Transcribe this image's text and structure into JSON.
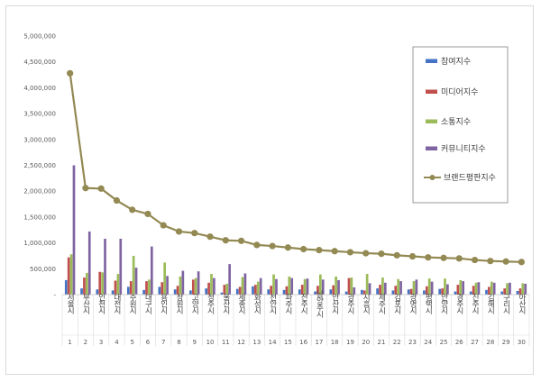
{
  "chart_data": {
    "type": "bar",
    "title": "",
    "xlabel": "",
    "ylabel": "",
    "ylim": [
      0,
      5000000
    ],
    "yticks": [
      "5,000,000",
      "4,500,000",
      "4,000,000",
      "3,500,000",
      "3,000,000",
      "2,500,000",
      "2,000,000",
      "1,500,000",
      "1,000,000",
      "500,000",
      "-"
    ],
    "legend_position": "right",
    "grid": false,
    "categories": [
      "서울시",
      "부산시",
      "인천시",
      "대전시",
      "수원시",
      "대구시",
      "용인시",
      "창원시",
      "고양시",
      "청주시",
      "울산시",
      "세종시",
      "화성시",
      "천안시",
      "파주시",
      "전주시",
      "남양주시",
      "안산시",
      "광주시",
      "시흥시",
      "제주시",
      "김포시",
      "광명시",
      "평택시",
      "안양시",
      "경주시",
      "진주시",
      "김해시",
      "구리시",
      "아산시"
    ],
    "ranks": [
      "1",
      "2",
      "3",
      "4",
      "5",
      "6",
      "7",
      "8",
      "9",
      "10",
      "11",
      "12",
      "13",
      "14",
      "15",
      "16",
      "17",
      "18",
      "19",
      "20",
      "21",
      "22",
      "23",
      "24",
      "25",
      "26",
      "27",
      "28",
      "29",
      "30"
    ],
    "series": [
      {
        "name": "참여지수",
        "kind": "bar",
        "color": "#4472c4",
        "values": [
          280000,
          120000,
          100000,
          80000,
          150000,
          90000,
          150000,
          100000,
          80000,
          120000,
          40000,
          110000,
          160000,
          100000,
          90000,
          100000,
          60000,
          100000,
          60000,
          90000,
          120000,
          80000,
          100000,
          80000,
          110000,
          60000,
          60000,
          90000,
          60000,
          70000
        ]
      },
      {
        "name": "미디어지수",
        "kind": "bar",
        "color": "#c0504d",
        "values": [
          720000,
          330000,
          440000,
          270000,
          260000,
          260000,
          240000,
          170000,
          290000,
          230000,
          190000,
          150000,
          190000,
          170000,
          160000,
          190000,
          170000,
          180000,
          320000,
          80000,
          190000,
          170000,
          110000,
          160000,
          120000,
          190000,
          170000,
          150000,
          120000,
          120000
        ]
      },
      {
        "name": "소통지수",
        "kind": "bar",
        "color": "#9bbb59",
        "values": [
          780000,
          420000,
          430000,
          400000,
          750000,
          290000,
          620000,
          350000,
          320000,
          400000,
          210000,
          340000,
          250000,
          390000,
          350000,
          300000,
          390000,
          350000,
          330000,
          400000,
          330000,
          300000,
          260000,
          310000,
          310000,
          280000,
          230000,
          250000,
          220000,
          220000
        ]
      },
      {
        "name": "커뮤니티지수",
        "kind": "bar",
        "color": "#8064a2",
        "values": [
          2500000,
          1220000,
          1080000,
          1080000,
          520000,
          930000,
          360000,
          460000,
          450000,
          320000,
          590000,
          410000,
          320000,
          300000,
          320000,
          310000,
          290000,
          280000,
          140000,
          220000,
          230000,
          260000,
          290000,
          250000,
          200000,
          260000,
          240000,
          230000,
          230000,
          210000
        ]
      },
      {
        "name": "브랜드평판지수",
        "kind": "line",
        "color": "#938953",
        "values": [
          4280000,
          2060000,
          2050000,
          1820000,
          1640000,
          1560000,
          1340000,
          1220000,
          1190000,
          1120000,
          1050000,
          1040000,
          960000,
          940000,
          910000,
          880000,
          860000,
          840000,
          820000,
          800000,
          790000,
          760000,
          740000,
          720000,
          710000,
          700000,
          670000,
          650000,
          640000,
          630000
        ]
      }
    ]
  }
}
